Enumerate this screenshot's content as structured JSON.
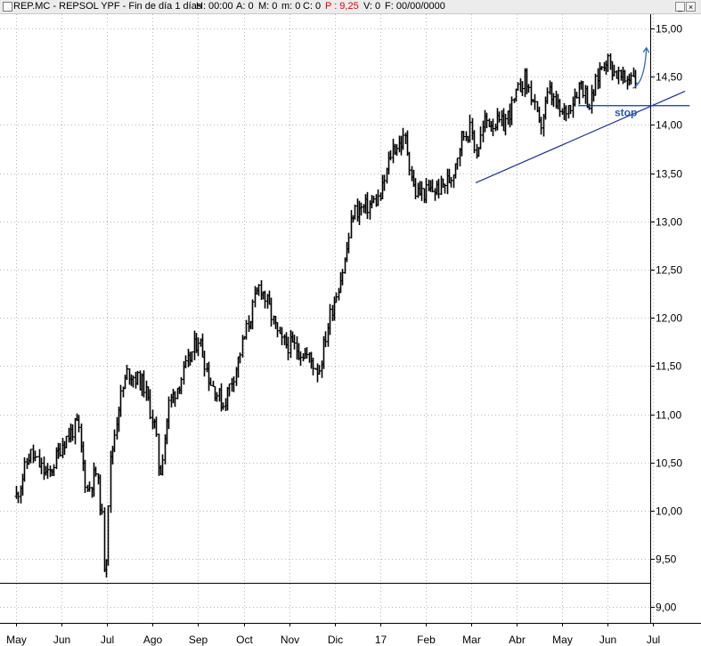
{
  "header": {
    "symbol": "REP.MC - REPSOL YPF - Fin de día 1 días",
    "h": "H: 00:00",
    "a": "A: 0",
    "m_open": "M: 0",
    "m_low": "m: 0",
    "c": "C: 0",
    "p": "P : 9,25",
    "v": "V: 0",
    "f": "F: 00/00/0000",
    "minimize_glyph": "_",
    "close_glyph": "×"
  },
  "colors": {
    "price": "#000000",
    "trendline": "#1f2f9a",
    "arrow": "#2a68b8",
    "stop": "#2a58a8",
    "grid": "#b8b8b8",
    "highlight_p": "#e00000"
  },
  "chart_data": {
    "type": "bar",
    "subtype": "ohlc-daily",
    "grid": true,
    "y_ticks": [
      "15,00",
      "14,50",
      "14,00",
      "13,50",
      "13,00",
      "12,50",
      "12,00",
      "11,50",
      "11,00",
      "10,50",
      "10,00",
      "9,50",
      "9,00"
    ],
    "ylim": [
      9.0,
      15.0
    ],
    "x_ticks": [
      "May",
      "Jun",
      "Jul",
      "Ago",
      "Sep",
      "Oct",
      "Nov",
      "Dic",
      "17",
      "Feb",
      "Mar",
      "Abr",
      "May",
      "Jun",
      "Jul"
    ],
    "price_anchors": [
      {
        "t": 0.0,
        "v": 10.15
      },
      {
        "t": 0.3,
        "v": 10.6
      },
      {
        "t": 0.7,
        "v": 10.35
      },
      {
        "t": 1.0,
        "v": 10.7
      },
      {
        "t": 1.35,
        "v": 10.9
      },
      {
        "t": 1.55,
        "v": 10.2
      },
      {
        "t": 1.75,
        "v": 10.4
      },
      {
        "t": 1.88,
        "v": 9.95
      },
      {
        "t": 1.95,
        "v": 9.25
      },
      {
        "t": 2.05,
        "v": 10.45
      },
      {
        "t": 2.25,
        "v": 11.1
      },
      {
        "t": 2.45,
        "v": 11.45
      },
      {
        "t": 2.8,
        "v": 11.3
      },
      {
        "t": 3.05,
        "v": 10.85
      },
      {
        "t": 3.15,
        "v": 10.35
      },
      {
        "t": 3.35,
        "v": 11.1
      },
      {
        "t": 3.7,
        "v": 11.45
      },
      {
        "t": 4.0,
        "v": 11.8
      },
      {
        "t": 4.25,
        "v": 11.35
      },
      {
        "t": 4.55,
        "v": 11.1
      },
      {
        "t": 4.8,
        "v": 11.45
      },
      {
        "t": 5.1,
        "v": 11.95
      },
      {
        "t": 5.35,
        "v": 12.35
      },
      {
        "t": 5.55,
        "v": 12.1
      },
      {
        "t": 5.8,
        "v": 11.75
      },
      {
        "t": 6.1,
        "v": 11.7
      },
      {
        "t": 6.4,
        "v": 11.6
      },
      {
        "t": 6.65,
        "v": 11.45
      },
      {
        "t": 6.9,
        "v": 12.05
      },
      {
        "t": 7.2,
        "v": 12.55
      },
      {
        "t": 7.4,
        "v": 13.1
      },
      {
        "t": 7.7,
        "v": 13.15
      },
      {
        "t": 8.0,
        "v": 13.25
      },
      {
        "t": 8.25,
        "v": 13.75
      },
      {
        "t": 8.55,
        "v": 13.85
      },
      {
        "t": 8.75,
        "v": 13.3
      },
      {
        "t": 9.0,
        "v": 13.3
      },
      {
        "t": 9.3,
        "v": 13.35
      },
      {
        "t": 9.55,
        "v": 13.45
      },
      {
        "t": 9.8,
        "v": 13.9
      },
      {
        "t": 10.0,
        "v": 13.95
      },
      {
        "t": 10.1,
        "v": 13.7
      },
      {
        "t": 10.3,
        "v": 14.05
      },
      {
        "t": 10.7,
        "v": 14.0
      },
      {
        "t": 10.95,
        "v": 14.25
      },
      {
        "t": 11.15,
        "v": 14.5
      },
      {
        "t": 11.35,
        "v": 14.25
      },
      {
        "t": 11.5,
        "v": 13.95
      },
      {
        "t": 11.7,
        "v": 14.35
      },
      {
        "t": 11.85,
        "v": 14.2
      },
      {
        "t": 12.0,
        "v": 14.1
      },
      {
        "t": 12.2,
        "v": 14.25
      },
      {
        "t": 12.4,
        "v": 14.45
      },
      {
        "t": 12.6,
        "v": 14.2
      },
      {
        "t": 12.8,
        "v": 14.55
      },
      {
        "t": 12.95,
        "v": 14.7
      },
      {
        "t": 13.15,
        "v": 14.55
      },
      {
        "t": 13.35,
        "v": 14.45
      },
      {
        "t": 13.55,
        "v": 14.55
      },
      {
        "t": 13.6,
        "v": 14.48
      }
    ],
    "horizontal_line": 9.25,
    "trendline": {
      "start": {
        "t": 10.1,
        "v": 13.4
      },
      "end": {
        "t": 14.7,
        "v": 14.35
      }
    },
    "stop_level": {
      "value": 14.2,
      "from_t": 12.35,
      "to_t": 14.8,
      "label": "stop"
    },
    "arrow": {
      "from": {
        "t": 13.55,
        "v": 14.38
      },
      "to": {
        "t": 13.85,
        "v": 14.8
      }
    }
  }
}
